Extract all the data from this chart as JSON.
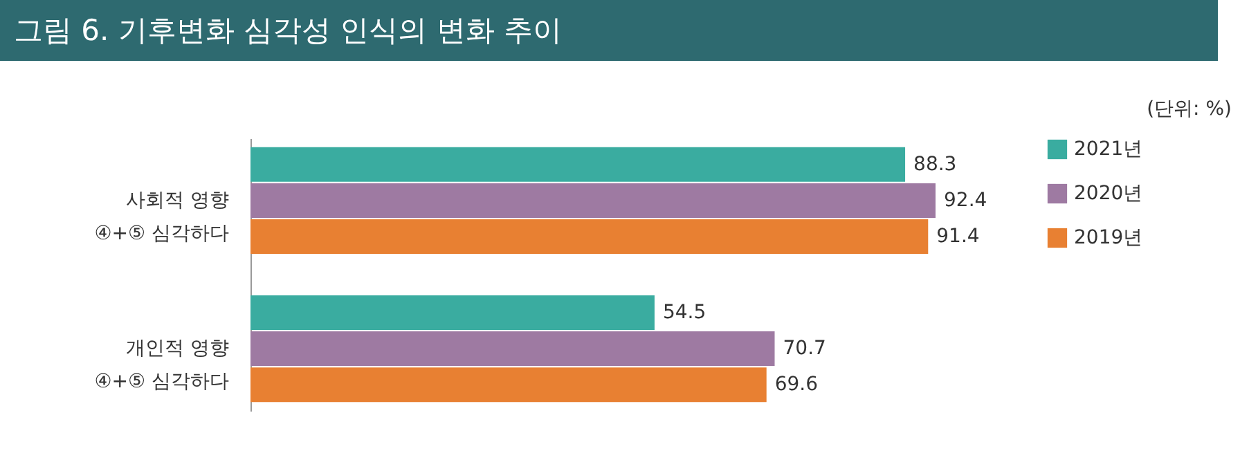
{
  "chart_data": {
    "type": "bar",
    "orientation": "horizontal",
    "title": "그림 6. 기후변화 심각성 인식의 변화 추이",
    "annotations": [
      "(단위: %)"
    ],
    "categories": [
      "사회적 영향\n④+⑤ 심각하다",
      "개인적 영향\n④+⑤ 심각하다"
    ],
    "series": [
      {
        "name": "2021년",
        "color": "#3aaca0",
        "values": [
          88.3,
          54.5
        ]
      },
      {
        "name": "2020년",
        "color": "#9e7aa2",
        "values": [
          92.4,
          70.7
        ]
      },
      {
        "name": "2019년",
        "color": "#e88032",
        "values": [
          91.4,
          69.6
        ]
      }
    ],
    "data_labels": true,
    "legend": "right",
    "grid": false
  }
}
